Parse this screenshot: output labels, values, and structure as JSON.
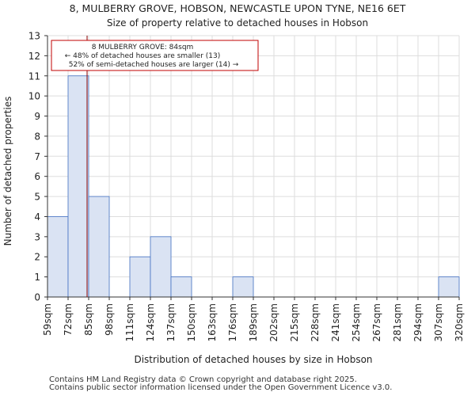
{
  "chart_data": {
    "type": "bar",
    "title_line1": "8, MULBERRY GROVE, HOBSON, NEWCASTLE UPON TYNE, NE16 6ET",
    "title_line2": "Size of property relative to detached houses in Hobson",
    "xlabel": "Distribution of detached houses by size in Hobson",
    "ylabel": "Number of detached properties",
    "bin_edges": [
      59,
      72,
      85,
      98,
      111,
      124,
      137,
      150,
      163,
      176,
      189,
      202,
      215,
      228,
      241,
      254,
      267,
      281,
      294,
      307,
      320
    ],
    "tick_labels": [
      "59sqm",
      "72sqm",
      "85sqm",
      "98sqm",
      "111sqm",
      "124sqm",
      "137sqm",
      "150sqm",
      "163sqm",
      "176sqm",
      "189sqm",
      "202sqm",
      "215sqm",
      "228sqm",
      "241sqm",
      "254sqm",
      "267sqm",
      "281sqm",
      "294sqm",
      "307sqm",
      "320sqm"
    ],
    "values": [
      4,
      11,
      5,
      0,
      2,
      3,
      1,
      0,
      0,
      1,
      0,
      0,
      0,
      0,
      0,
      0,
      0,
      0,
      0,
      1
    ],
    "ylim": [
      0,
      13
    ],
    "yticks": [
      0,
      1,
      2,
      3,
      4,
      5,
      6,
      7,
      8,
      9,
      10,
      11,
      12,
      13
    ],
    "subject_value": 84,
    "annotation": {
      "line1": "8 MULBERRY GROVE: 84sqm",
      "line2": "← 48% of detached houses are smaller (13)",
      "line3": "52% of semi-detached houses are larger (14) →"
    },
    "colors": {
      "bar_fill": "#dae3f3",
      "bar_stroke": "#4472c4",
      "subject_line": "#8b0000",
      "annotation_border": "#c00000",
      "grid": "#dddddd"
    }
  },
  "footer": {
    "line1": "Contains HM Land Registry data © Crown copyright and database right 2025.",
    "line2": "Contains public sector information licensed under the Open Government Licence v3.0."
  }
}
